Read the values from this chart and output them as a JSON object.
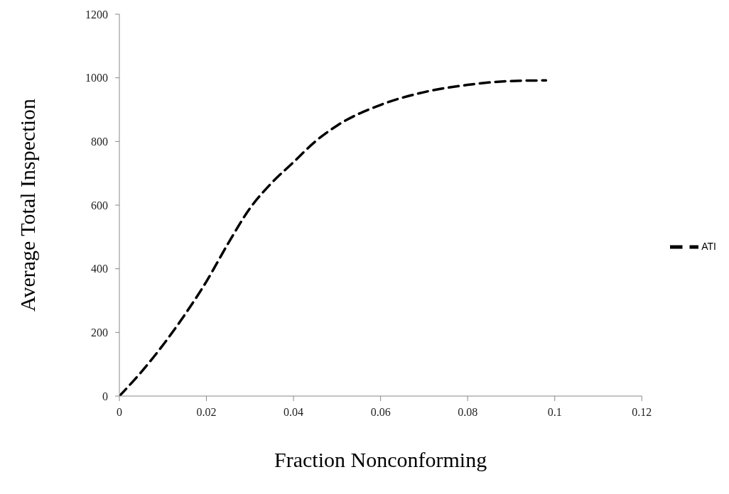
{
  "chart_data": {
    "type": "line",
    "xlabel": "Fraction Nonconforming",
    "ylabel": "Average  Total  Inspection",
    "xlim": [
      0,
      0.12
    ],
    "xticks": [
      0,
      0.02,
      0.04,
      0.06,
      0.08,
      0.1,
      0.12
    ],
    "ylim": [
      0,
      1200
    ],
    "yticks": [
      0,
      200,
      400,
      600,
      800,
      1000,
      1200
    ],
    "grid": false,
    "legend": "right",
    "marker": "none",
    "line_style": "dashed",
    "series": [
      {
        "name": "ATI",
        "color": "#000000",
        "x": [
          0,
          0.005,
          0.01,
          0.015,
          0.02,
          0.025,
          0.03,
          0.035,
          0.04,
          0.045,
          0.05,
          0.06,
          0.07,
          0.08,
          0.09,
          0.098
        ],
        "values": [
          0,
          75,
          160,
          255,
          360,
          480,
          590,
          670,
          735,
          800,
          850,
          915,
          955,
          978,
          990,
          992
        ]
      }
    ]
  }
}
